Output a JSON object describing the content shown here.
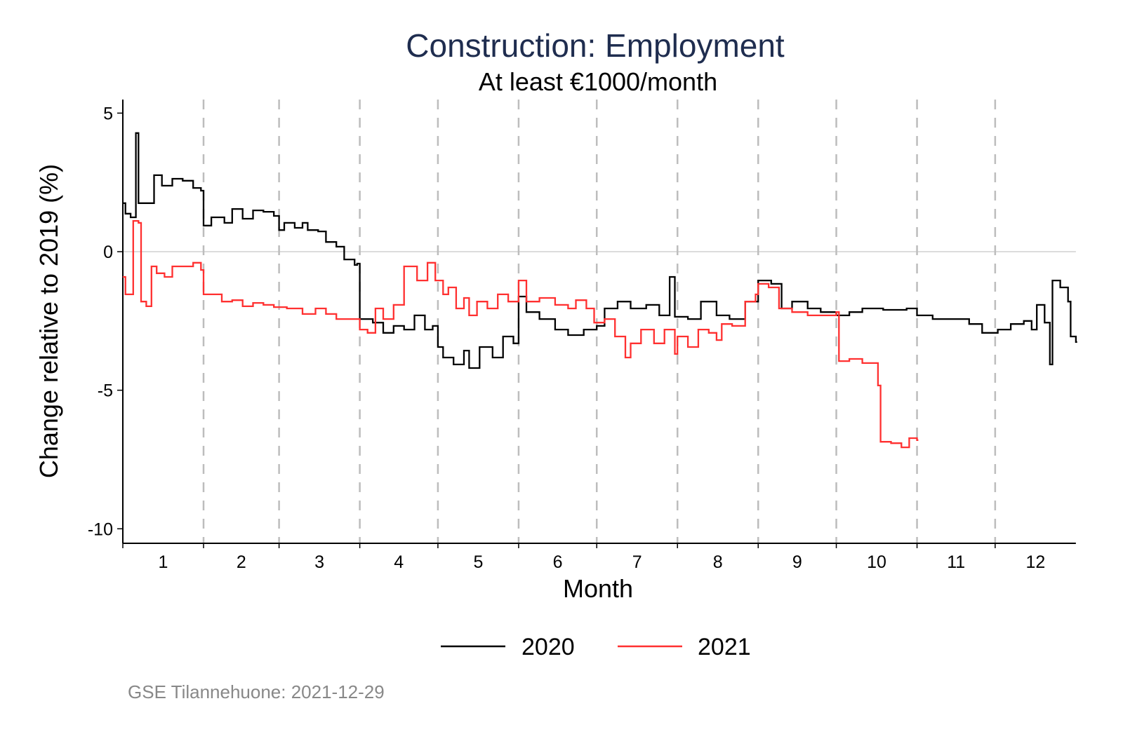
{
  "chart_data": {
    "type": "line",
    "title": "Construction: Employment",
    "subtitle": "At least €1000/month",
    "xlabel": "Month",
    "ylabel": "Change relative to 2019 (%)",
    "xlim_days": [
      0,
      366
    ],
    "ylim": [
      -10.5,
      5.5
    ],
    "y_ticks": [
      5,
      0,
      -5,
      -10
    ],
    "y_tick_labels": [
      "5",
      "0",
      "-5",
      "-10"
    ],
    "month_boundaries_days": [
      31,
      60,
      91,
      121,
      152,
      182,
      213,
      244,
      274,
      305,
      335
    ],
    "month_labels": [
      "1",
      "2",
      "3",
      "4",
      "5",
      "6",
      "7",
      "8",
      "9",
      "10",
      "11",
      "12"
    ],
    "month_starts_days": [
      0,
      31,
      60,
      91,
      121,
      152,
      182,
      213,
      244,
      274,
      305,
      335,
      366
    ],
    "reference_line": 0,
    "legend_position": "bottom",
    "series": [
      {
        "name": "2020",
        "color": "#000000",
        "step": true,
        "points": [
          [
            0,
            1.75
          ],
          [
            1,
            1.37
          ],
          [
            3,
            1.24
          ],
          [
            5,
            4.28
          ],
          [
            6,
            1.75
          ],
          [
            11,
            1.75
          ],
          [
            12,
            2.76
          ],
          [
            15,
            2.38
          ],
          [
            19,
            2.63
          ],
          [
            23,
            2.56
          ],
          [
            27,
            2.3
          ],
          [
            30,
            2.2
          ],
          [
            31,
            0.94
          ],
          [
            34,
            1.24
          ],
          [
            39,
            1.04
          ],
          [
            42,
            1.54
          ],
          [
            46,
            1.19
          ],
          [
            50,
            1.49
          ],
          [
            54,
            1.44
          ],
          [
            58,
            1.29
          ],
          [
            60,
            0.78
          ],
          [
            62,
            1.04
          ],
          [
            66,
            0.86
          ],
          [
            69,
            1.04
          ],
          [
            71,
            0.78
          ],
          [
            75,
            0.73
          ],
          [
            78,
            0.35
          ],
          [
            82,
            0.18
          ],
          [
            85,
            -0.28
          ],
          [
            89,
            -0.48
          ],
          [
            90,
            -0.43
          ],
          [
            91,
            -2.43
          ],
          [
            96,
            -2.56
          ],
          [
            100,
            -2.93
          ],
          [
            104,
            -2.68
          ],
          [
            108,
            -2.81
          ],
          [
            112,
            -2.3
          ],
          [
            116,
            -2.81
          ],
          [
            119,
            -2.68
          ],
          [
            121,
            -3.44
          ],
          [
            123,
            -3.82
          ],
          [
            127,
            -4.07
          ],
          [
            131,
            -3.57
          ],
          [
            133,
            -4.2
          ],
          [
            137,
            -3.44
          ],
          [
            142,
            -3.82
          ],
          [
            146,
            -3.06
          ],
          [
            150,
            -3.31
          ],
          [
            152,
            -1.62
          ],
          [
            155,
            -2.18
          ],
          [
            160,
            -2.43
          ],
          [
            166,
            -2.81
          ],
          [
            171,
            -3.01
          ],
          [
            177,
            -2.81
          ],
          [
            182,
            -2.68
          ],
          [
            185,
            -2.05
          ],
          [
            190,
            -1.8
          ],
          [
            195,
            -2.05
          ],
          [
            201,
            -1.92
          ],
          [
            206,
            -2.3
          ],
          [
            210,
            -0.91
          ],
          [
            212,
            -2.35
          ],
          [
            217,
            -2.43
          ],
          [
            222,
            -1.8
          ],
          [
            228,
            -2.3
          ],
          [
            233,
            -2.43
          ],
          [
            239,
            -1.8
          ],
          [
            244,
            -1.04
          ],
          [
            249,
            -1.16
          ],
          [
            253,
            -2.05
          ],
          [
            257,
            -1.8
          ],
          [
            263,
            -2.05
          ],
          [
            268,
            -2.18
          ],
          [
            274,
            -2.3
          ],
          [
            279,
            -2.18
          ],
          [
            284,
            -2.05
          ],
          [
            292,
            -2.1
          ],
          [
            301,
            -2.05
          ],
          [
            305,
            -2.3
          ],
          [
            311,
            -2.43
          ],
          [
            317,
            -2.43
          ],
          [
            325,
            -2.61
          ],
          [
            330,
            -2.93
          ],
          [
            336,
            -2.81
          ],
          [
            341,
            -2.61
          ],
          [
            346,
            -2.5
          ],
          [
            349,
            -2.81
          ],
          [
            351,
            -1.92
          ],
          [
            354,
            -2.56
          ],
          [
            356,
            -4.07
          ],
          [
            357,
            -1.04
          ],
          [
            360,
            -1.29
          ],
          [
            363,
            -1.8
          ],
          [
            364,
            -3.06
          ],
          [
            366,
            -3.26
          ]
        ]
      },
      {
        "name": "2021",
        "color": "#ff3030",
        "step": true,
        "points": [
          [
            0,
            -0.91
          ],
          [
            1,
            -1.54
          ],
          [
            4,
            1.11
          ],
          [
            6,
            1.04
          ],
          [
            7,
            -1.8
          ],
          [
            9,
            -1.97
          ],
          [
            11,
            -0.53
          ],
          [
            13,
            -0.78
          ],
          [
            16,
            -0.91
          ],
          [
            19,
            -0.53
          ],
          [
            23,
            -0.53
          ],
          [
            27,
            -0.4
          ],
          [
            30,
            -0.66
          ],
          [
            31,
            -1.54
          ],
          [
            34,
            -1.54
          ],
          [
            38,
            -1.8
          ],
          [
            42,
            -1.75
          ],
          [
            46,
            -1.97
          ],
          [
            50,
            -1.85
          ],
          [
            54,
            -1.92
          ],
          [
            58,
            -2.0
          ],
          [
            63,
            -2.05
          ],
          [
            69,
            -2.25
          ],
          [
            74,
            -2.05
          ],
          [
            78,
            -2.25
          ],
          [
            82,
            -2.43
          ],
          [
            86,
            -2.43
          ],
          [
            91,
            -2.81
          ],
          [
            94,
            -2.93
          ],
          [
            97,
            -2.05
          ],
          [
            100,
            -2.43
          ],
          [
            104,
            -1.92
          ],
          [
            108,
            -0.53
          ],
          [
            111,
            -0.53
          ],
          [
            113,
            -1.04
          ],
          [
            117,
            -0.4
          ],
          [
            120,
            -1.04
          ],
          [
            123,
            -1.54
          ],
          [
            125,
            -1.29
          ],
          [
            128,
            -2.05
          ],
          [
            131,
            -1.67
          ],
          [
            133,
            -2.3
          ],
          [
            136,
            -1.8
          ],
          [
            140,
            -2.05
          ],
          [
            144,
            -1.54
          ],
          [
            148,
            -1.8
          ],
          [
            152,
            -1.04
          ],
          [
            155,
            -1.8
          ],
          [
            160,
            -1.67
          ],
          [
            166,
            -1.92
          ],
          [
            171,
            -2.05
          ],
          [
            174,
            -1.75
          ],
          [
            178,
            -2.05
          ],
          [
            181,
            -2.56
          ],
          [
            185,
            -2.43
          ],
          [
            189,
            -3.06
          ],
          [
            193,
            -3.82
          ],
          [
            195,
            -3.31
          ],
          [
            199,
            -2.81
          ],
          [
            204,
            -3.31
          ],
          [
            208,
            -2.81
          ],
          [
            212,
            -3.69
          ],
          [
            213,
            -3.06
          ],
          [
            217,
            -3.44
          ],
          [
            221,
            -2.81
          ],
          [
            225,
            -2.93
          ],
          [
            228,
            -3.19
          ],
          [
            230,
            -2.61
          ],
          [
            234,
            -2.68
          ],
          [
            239,
            -1.8
          ],
          [
            243,
            -1.54
          ],
          [
            244,
            -1.16
          ],
          [
            248,
            -1.29
          ],
          [
            252,
            -2.05
          ],
          [
            257,
            -2.18
          ],
          [
            263,
            -2.3
          ],
          [
            268,
            -2.3
          ],
          [
            274,
            -2.18
          ],
          [
            275,
            -3.95
          ],
          [
            279,
            -3.87
          ],
          [
            284,
            -4.02
          ],
          [
            290,
            -4.83
          ],
          [
            291,
            -6.86
          ],
          [
            295,
            -6.91
          ],
          [
            299,
            -7.06
          ],
          [
            302,
            -6.73
          ],
          [
            305,
            -6.8
          ]
        ]
      }
    ],
    "source_note": "GSE Tilannehuone: 2021-12-29"
  }
}
